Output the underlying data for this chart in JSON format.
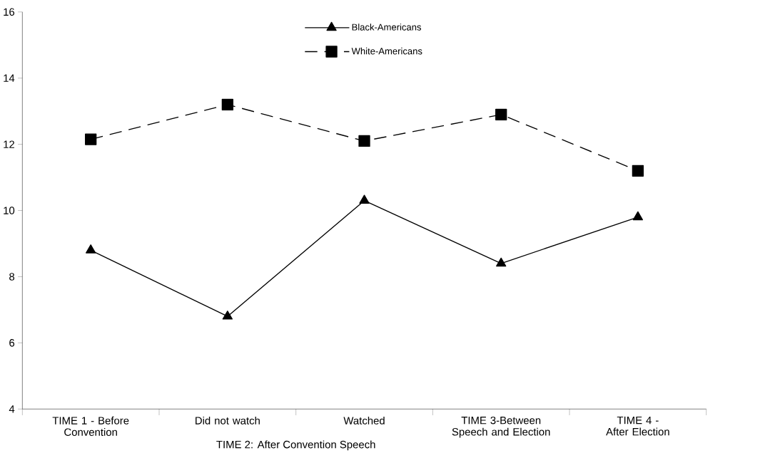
{
  "chart_data": {
    "type": "line",
    "categories": [
      "TIME 1 - Before Convention",
      "Did not watch",
      "Watched",
      "TIME 3-Between Speech and Election",
      "TIME 4 - After Election"
    ],
    "series": [
      {
        "name": "Black-Americans",
        "color": "#000000",
        "marker": "triangle",
        "line_style": "solid",
        "values": [
          8.8,
          6.8,
          10.3,
          8.4,
          9.8
        ]
      },
      {
        "name": "White-Americans",
        "color": "#000000",
        "marker": "square",
        "line_style": "dashed",
        "values": [
          12.15,
          13.2,
          12.1,
          12.9,
          11.2
        ]
      }
    ],
    "annotations": [
      "TIME 2: After Convention Speech"
    ],
    "ylim": [
      4,
      16
    ],
    "yticks": [
      4,
      6,
      8,
      10,
      12,
      14,
      16
    ],
    "legend": "top",
    "grid": false
  }
}
